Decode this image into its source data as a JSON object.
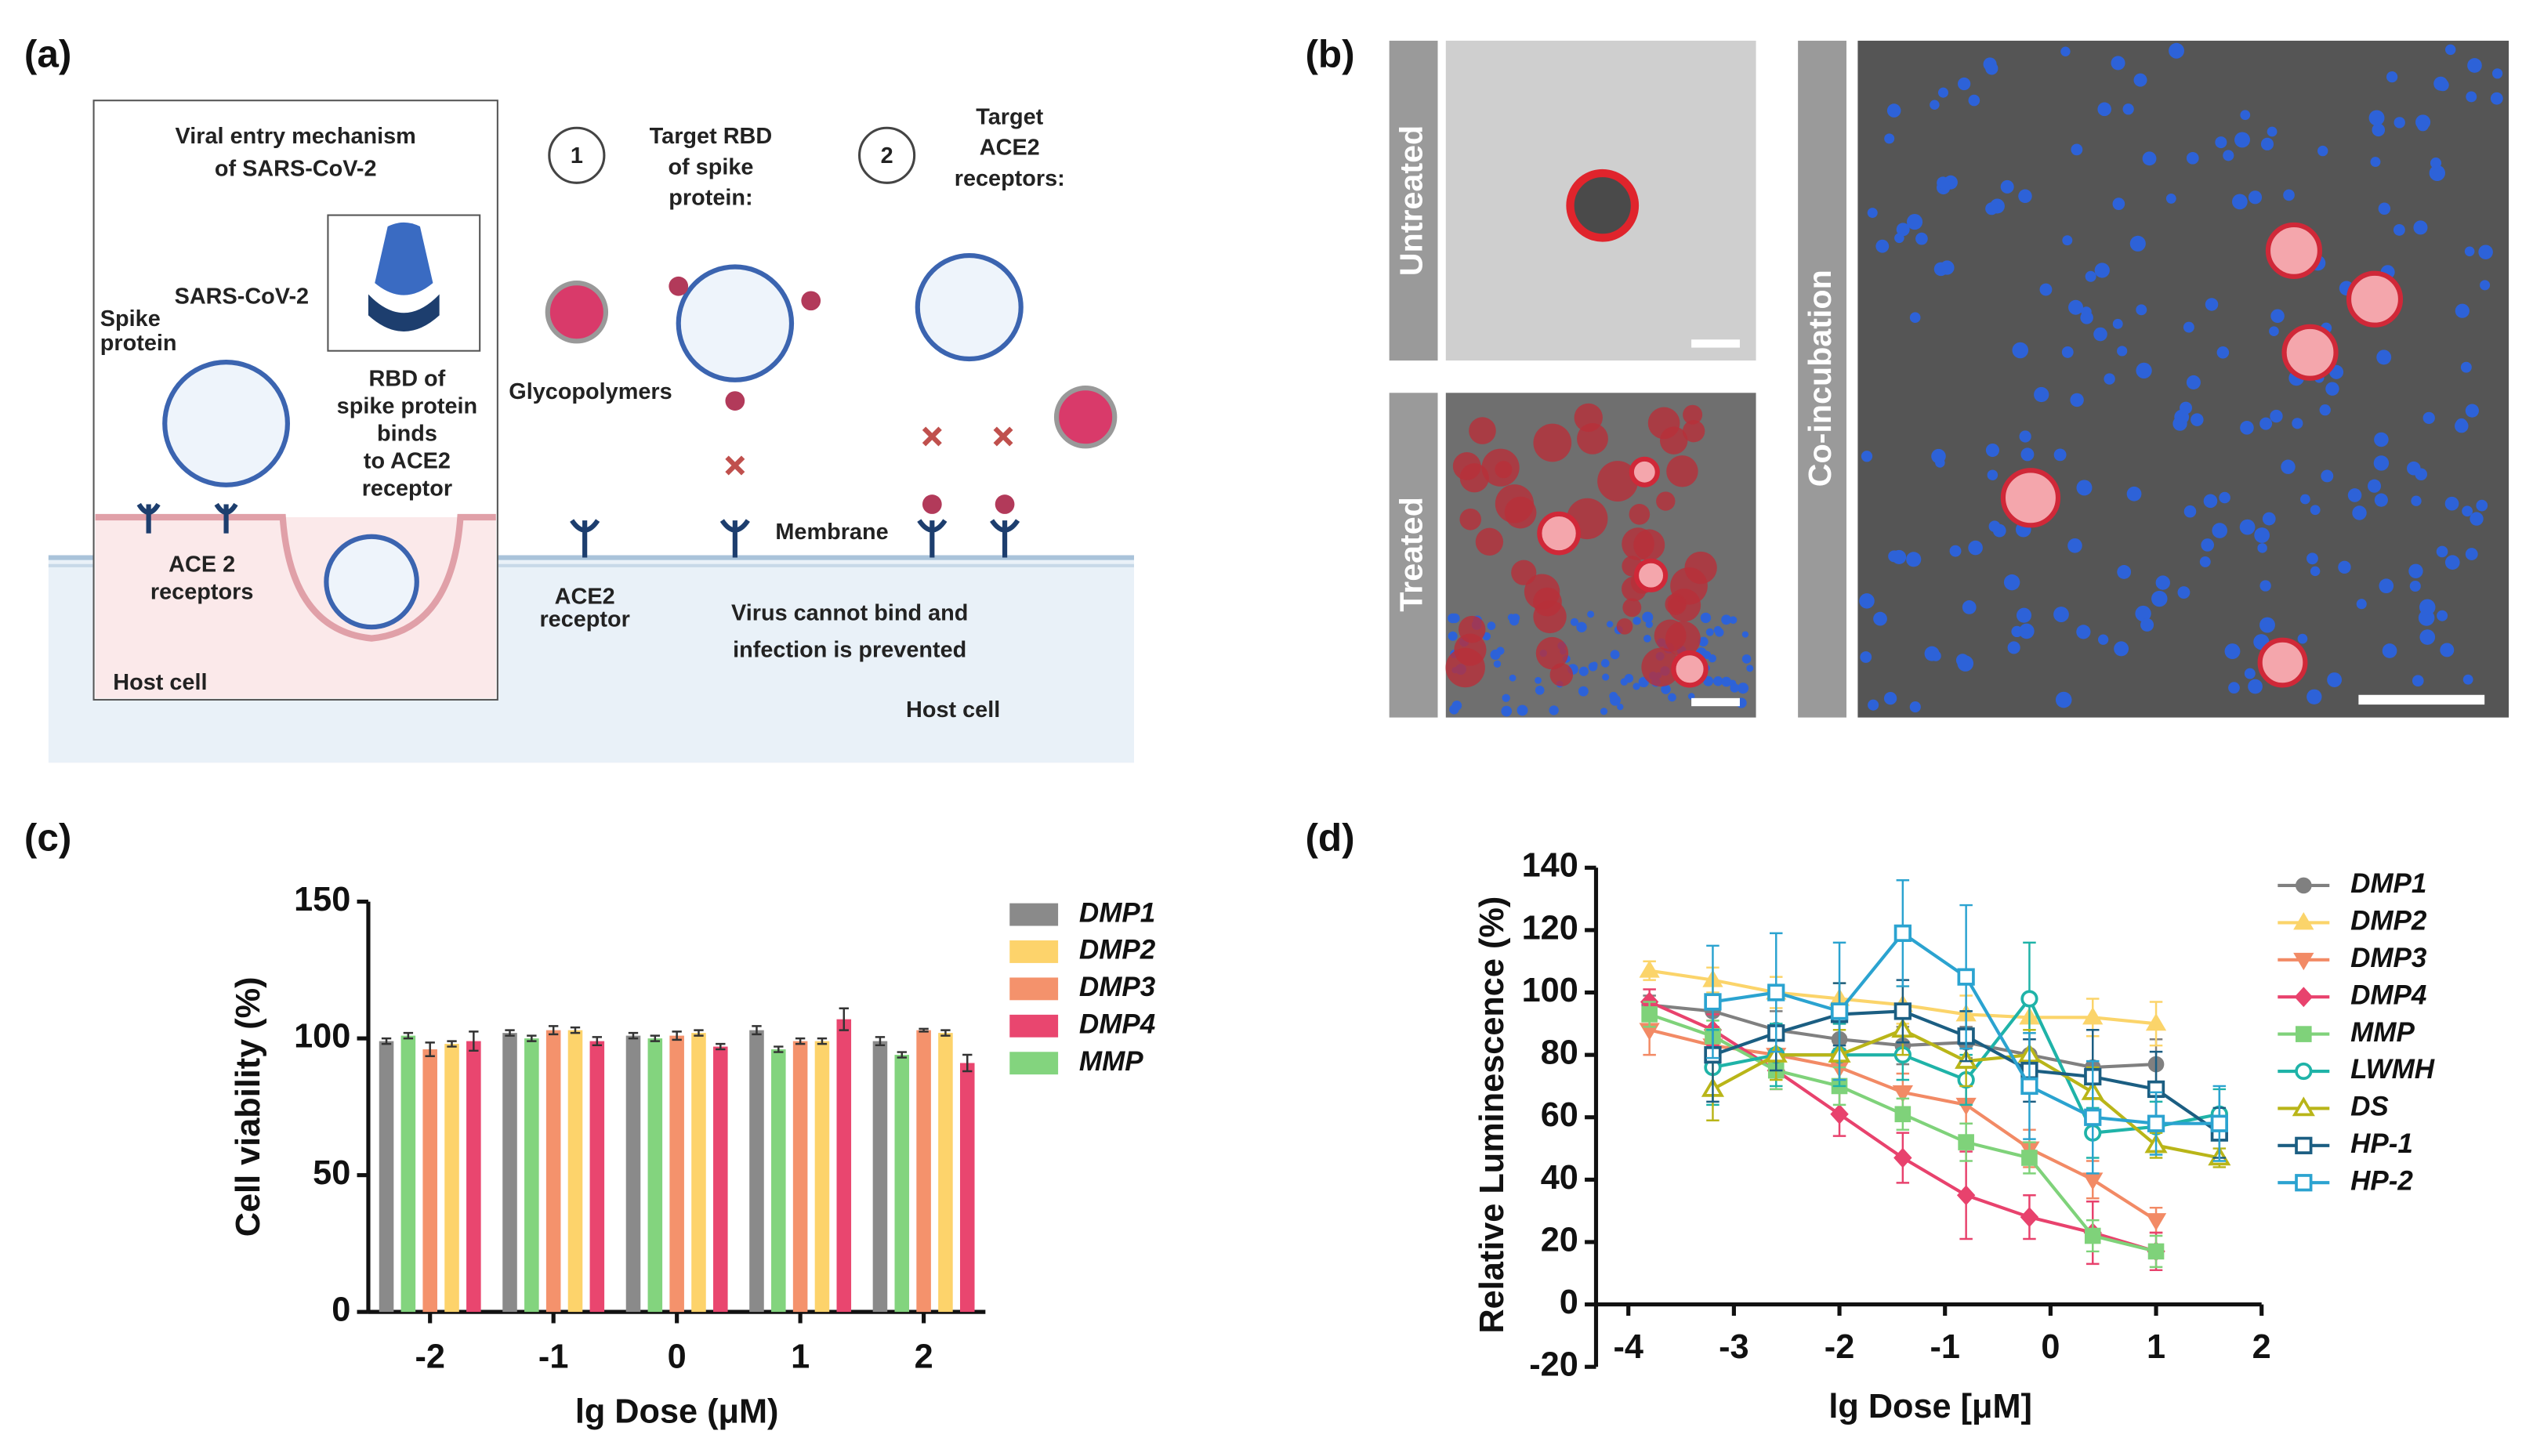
{
  "panel_labels": [
    "(a)",
    "(b)",
    "(c)",
    "(d)"
  ],
  "diagram": {
    "title": "Viral entry mechanism",
    "subtitle": "of SARS-CoV-2",
    "spike_label": [
      "Spike",
      "protein"
    ],
    "superscript": "SARS-CoV-2",
    "rbd_text": [
      "RBD of",
      "spike protein",
      "binds",
      "to ACE2",
      "receptor"
    ],
    "ace2_receptors": [
      "ACE 2",
      "receptors"
    ],
    "host_cell_left": "Host cell",
    "steps": [
      {
        "number": "1",
        "text": [
          "Target RBD",
          "of spike",
          "protein:"
        ]
      },
      {
        "number": "2",
        "text": [
          "Target",
          "ACE2",
          "receptors:"
        ]
      }
    ],
    "glycopolymers": "Glycopolymers",
    "membrane": "Membrane",
    "ace2_receptor": [
      "ACE2",
      "receptor"
    ],
    "outcome": [
      "Virus cannot bind and",
      "infection is prevented"
    ],
    "host_cell_right": "Host cell"
  },
  "micrographs": {
    "untreated": "Untreated",
    "treated": "Treated",
    "co_incubation": "Co-incubation"
  },
  "chart_data": [
    {
      "type": "bar",
      "xlabel": "lg Dose (μM)",
      "ylabel": "Cell viability (%)",
      "categories": [
        "-2",
        "-1",
        "0",
        "1",
        "2"
      ],
      "ylim": [
        0,
        150
      ],
      "yticks": [
        0,
        50,
        100,
        150
      ],
      "series": [
        {
          "name": "DMP1",
          "color": "#8a8a8a",
          "values": [
            99,
            102,
            101,
            103,
            99
          ],
          "errors": [
            1,
            1,
            1,
            1.5,
            1.5
          ]
        },
        {
          "name": "DMP2",
          "color": "#fdd36b",
          "values": [
            98,
            103,
            102,
            99,
            102
          ],
          "errors": [
            1,
            1,
            1,
            1,
            1
          ]
        },
        {
          "name": "DMP3",
          "color": "#f4926c",
          "values": [
            96,
            103,
            101,
            99,
            103
          ],
          "errors": [
            2.5,
            1.5,
            1.5,
            1,
            0.5
          ]
        },
        {
          "name": "DMP4",
          "color": "#e9466f",
          "values": [
            99,
            99,
            97,
            107,
            91
          ],
          "errors": [
            3.5,
            1.5,
            1,
            4,
            3
          ]
        },
        {
          "name": "MMP",
          "color": "#83d47e",
          "values": [
            101,
            100,
            100,
            96,
            94
          ],
          "errors": [
            1,
            1,
            1,
            1,
            1
          ]
        }
      ]
    },
    {
      "type": "line",
      "xlabel": "lg Dose [μM]",
      "ylabel": "Relative Luminescence (%)",
      "x": [
        -3.8,
        -3.2,
        -2.6,
        -2,
        -1.4,
        -0.8,
        -0.2,
        0.4,
        1.0,
        1.6
      ],
      "xlim": [
        -4,
        2
      ],
      "xticks": [
        -4,
        -3,
        -2,
        -1,
        0,
        1,
        2
      ],
      "ylim": [
        -20,
        140
      ],
      "yticks": [
        -20,
        0,
        20,
        40,
        60,
        80,
        100,
        120,
        140
      ],
      "series": [
        {
          "name": "DMP1",
          "color": "#808080",
          "marker": "circle",
          "values": [
            96,
            94,
            88,
            85,
            83,
            84,
            80,
            76,
            77,
            null
          ],
          "errors": [
            3,
            5,
            6,
            5,
            6,
            5,
            5,
            10,
            8,
            null
          ]
        },
        {
          "name": "DMP2",
          "color": "#fbd46a",
          "marker": "triangle",
          "values": [
            107,
            104,
            100,
            98,
            96,
            93,
            92,
            92,
            90,
            null
          ],
          "errors": [
            3,
            4,
            5,
            5,
            6,
            6,
            5,
            6,
            7,
            null
          ]
        },
        {
          "name": "DMP3",
          "color": "#f28a65",
          "marker": "triangle-down",
          "values": [
            88,
            83,
            80,
            76,
            68,
            64,
            50,
            40,
            27,
            null
          ],
          "errors": [
            8,
            6,
            6,
            6,
            6,
            6,
            6,
            6,
            4,
            null
          ]
        },
        {
          "name": "DMP4",
          "color": "#e8426d",
          "marker": "diamond",
          "values": [
            97,
            88,
            75,
            61,
            47,
            35,
            28,
            23,
            17,
            null
          ],
          "errors": [
            4,
            5,
            6,
            7,
            8,
            14,
            7,
            10,
            6,
            null
          ]
        },
        {
          "name": "MMP",
          "color": "#7fd27a",
          "marker": "square",
          "values": [
            93,
            86,
            75,
            70,
            61,
            52,
            47,
            22,
            17,
            null
          ],
          "errors": [
            4,
            5,
            6,
            6,
            5,
            6,
            5,
            5,
            5,
            null
          ]
        },
        {
          "name": "LWMH",
          "color": "#1fb3a8",
          "marker": "circle-open",
          "values": [
            null,
            76,
            80,
            80,
            80,
            72,
            98,
            55,
            57,
            61
          ],
          "errors": [
            null,
            12,
            10,
            10,
            8,
            8,
            18,
            8,
            8,
            8
          ]
        },
        {
          "name": "DS",
          "color": "#b9b518",
          "marker": "triangle-open",
          "values": [
            null,
            69,
            80,
            80,
            88,
            78,
            80,
            68,
            51,
            47
          ],
          "errors": [
            null,
            10,
            8,
            8,
            8,
            8,
            8,
            8,
            4,
            3
          ]
        },
        {
          "name": "HP-1",
          "color": "#1b5e82",
          "marker": "square-open",
          "values": [
            null,
            80,
            87,
            93,
            94,
            86,
            75,
            73,
            69,
            55
          ],
          "errors": [
            null,
            15,
            12,
            10,
            10,
            8,
            10,
            15,
            12,
            8
          ]
        },
        {
          "name": "HP-2",
          "color": "#2ba3d0",
          "marker": "square-open",
          "values": [
            null,
            97,
            100,
            94,
            119,
            105,
            70,
            60,
            58,
            58
          ],
          "errors": [
            null,
            18,
            19,
            22,
            17,
            23,
            17,
            18,
            10,
            12
          ]
        }
      ]
    }
  ]
}
